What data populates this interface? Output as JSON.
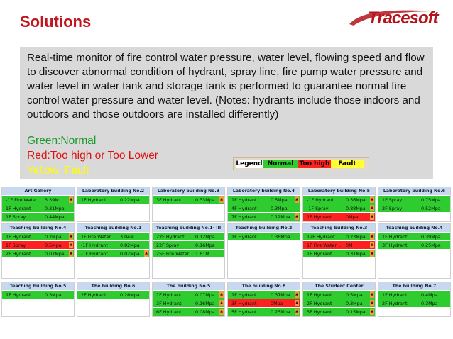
{
  "header": {
    "title": "Solutions",
    "logo": "Tracesoft"
  },
  "description": "Real-time monitor of fire control water pressure, water level, flowing speed and flow to discover abnormal condition of hydrant, spray line, fire pump water pressure and water level in water tank and storage tank is performed to guarantee normal fire control water pressure and water level. (Notes: hydrants include those indoors and outdoors and those outdoors are installed differently)",
  "status_lines": {
    "green": "Green:Normal",
    "red": "Red:Too high or Too Lower",
    "yellow": "Yellow: Fault"
  },
  "colors": {
    "title": "#c0171f",
    "green": "#2ecc2e",
    "red": "#ff2020",
    "yellow": "#ffff33",
    "panel_header": "#c8d8ef"
  },
  "legend": {
    "label": "Legend",
    "normal": "Normal",
    "high": "Too high",
    "fault": "Fault"
  },
  "panels": [
    {
      "title": "Art Gallery",
      "rows": [
        {
          "name": "-1F Fire Water ...",
          "value": "3.39M",
          "status": "g",
          "arrow": true
        },
        {
          "name": "1F Hydrant",
          "value": "0.31Mpa",
          "status": "g",
          "arrow": false
        },
        {
          "name": "1F Spray",
          "value": "0.44Mpa",
          "status": "g",
          "arrow": false
        }
      ]
    },
    {
      "title": "Laboratory building No.2",
      "rows": [
        {
          "name": "1F Hydrant",
          "value": "0.22Mpa",
          "status": "g",
          "arrow": false
        }
      ]
    },
    {
      "title": "Laboratory building No.3",
      "rows": [
        {
          "name": "3F Hydrant",
          "value": "0.33Mpa",
          "status": "g",
          "arrow": true
        }
      ]
    },
    {
      "title": "Laboratory building No.4",
      "rows": [
        {
          "name": "1F Hydrant",
          "value": "0.5Mpa",
          "status": "g",
          "arrow": true
        },
        {
          "name": "4F Hydrant",
          "value": "0.3Mpa",
          "status": "g",
          "arrow": false
        },
        {
          "name": "7F Hydrant",
          "value": "0.12Mpa",
          "status": "g",
          "arrow": true
        }
      ]
    },
    {
      "title": "Laboratory building No.5",
      "rows": [
        {
          "name": "-1F Hydrant",
          "value": "0.36Mpa",
          "status": "g",
          "arrow": true
        },
        {
          "name": "-1F Spray",
          "value": "0.88Mpa",
          "status": "g",
          "arrow": true
        },
        {
          "name": "1F Hydrant",
          "value": "0Mpa",
          "status": "r",
          "arrow": true
        }
      ]
    },
    {
      "title": "Laboratory building No.6",
      "rows": [
        {
          "name": "1F Spray",
          "value": "0.75Mpa",
          "status": "g",
          "arrow": false
        },
        {
          "name": "2F Spray",
          "value": "0.52Mpa",
          "status": "g",
          "arrow": false
        }
      ]
    },
    {
      "title": "Teaching building No.4",
      "rows": [
        {
          "name": "1F Hydrant",
          "value": "0.2Mpa",
          "status": "g",
          "arrow": true
        },
        {
          "name": "1F Spray",
          "value": "0.5Mpa",
          "status": "r",
          "arrow": true
        },
        {
          "name": "2F Hydrant",
          "value": "0.07Mpa",
          "status": "g",
          "arrow": true
        }
      ]
    },
    {
      "title": "Teaching building No.1",
      "rows": [
        {
          "name": "1F Fire Water ...",
          "value": "3.04M",
          "status": "g",
          "arrow": false
        },
        {
          "name": "-1F Hydrant",
          "value": "0.82Mpa",
          "status": "g",
          "arrow": false
        },
        {
          "name": "-1F Hydrant",
          "value": "0.02Mpa",
          "status": "g",
          "arrow": true
        }
      ]
    },
    {
      "title": "Teaching building No.1- III",
      "rows": [
        {
          "name": "22F Hydrant",
          "value": "0.12Mpa",
          "status": "g",
          "arrow": false
        },
        {
          "name": "22F Spray",
          "value": "0.16Mpa",
          "status": "g",
          "arrow": false
        },
        {
          "name": "25F Fire Water ...",
          "value": "1.61M",
          "status": "g",
          "arrow": false
        }
      ]
    },
    {
      "title": "Teaching building No.2",
      "rows": [
        {
          "name": "1F Hydrant",
          "value": "0.36Mpa",
          "status": "g",
          "arrow": false
        }
      ]
    },
    {
      "title": "Teaching building No.3",
      "rows": [
        {
          "name": "12F Hydrant",
          "value": "0.23Mpa",
          "status": "g",
          "arrow": true
        },
        {
          "name": "1F Fire Water ...",
          "value": "0M",
          "status": "r",
          "arrow": true
        },
        {
          "name": "1F Hydrant",
          "value": "0.31Mpa",
          "status": "g",
          "arrow": true
        }
      ]
    },
    {
      "title": "Teaching building No.4",
      "rows": [
        {
          "name": "1F Hydrant",
          "value": "0.39Mpa",
          "status": "g",
          "arrow": false
        },
        {
          "name": "3F Hydrant",
          "value": "0.25Mpa",
          "status": "g",
          "arrow": false
        }
      ]
    },
    {
      "title": "Teaching building No.5",
      "rows": [
        {
          "name": "1F Hydrant",
          "value": "0.3Mpa",
          "status": "g",
          "arrow": false
        }
      ]
    },
    {
      "title": "The building No.6",
      "rows": [
        {
          "name": "2F Hydrant",
          "value": "0.26Mpa",
          "status": "g",
          "arrow": false
        }
      ]
    },
    {
      "title": "The building No.5",
      "rows": [
        {
          "name": "1F Hydrant",
          "value": "0.07Mpa",
          "status": "g",
          "arrow": true
        },
        {
          "name": "3F Hydrant",
          "value": "0.16Mpa",
          "status": "g",
          "arrow": true
        },
        {
          "name": "6F Hydrant",
          "value": "0.08Mpa",
          "status": "g",
          "arrow": true
        }
      ]
    },
    {
      "title": "The building No.8",
      "rows": [
        {
          "name": "1F Hydrant",
          "value": "0.37Mpa",
          "status": "g",
          "arrow": true
        },
        {
          "name": "3F Hydrant",
          "value": "0Mpa",
          "status": "r",
          "arrow": true
        },
        {
          "name": "5F Hydrant",
          "value": "0.23Mpa",
          "status": "g",
          "arrow": true
        }
      ]
    },
    {
      "title": "The Student Center",
      "rows": [
        {
          "name": "1F Hydrant",
          "value": "0.5Mpa",
          "status": "g",
          "arrow": true
        },
        {
          "name": "2F Hydrant",
          "value": "0.3Mpa",
          "status": "g",
          "arrow": true
        },
        {
          "name": "3F Hydrant",
          "value": "0.15Mpa",
          "status": "g",
          "arrow": true
        }
      ]
    },
    {
      "title": "The building No.7",
      "rows": [
        {
          "name": "1F Hydrant",
          "value": "0.4Mpa",
          "status": "g",
          "arrow": false
        },
        {
          "name": "2F Hydrant",
          "value": "0.3Mpa",
          "status": "g",
          "arrow": false
        }
      ]
    }
  ]
}
